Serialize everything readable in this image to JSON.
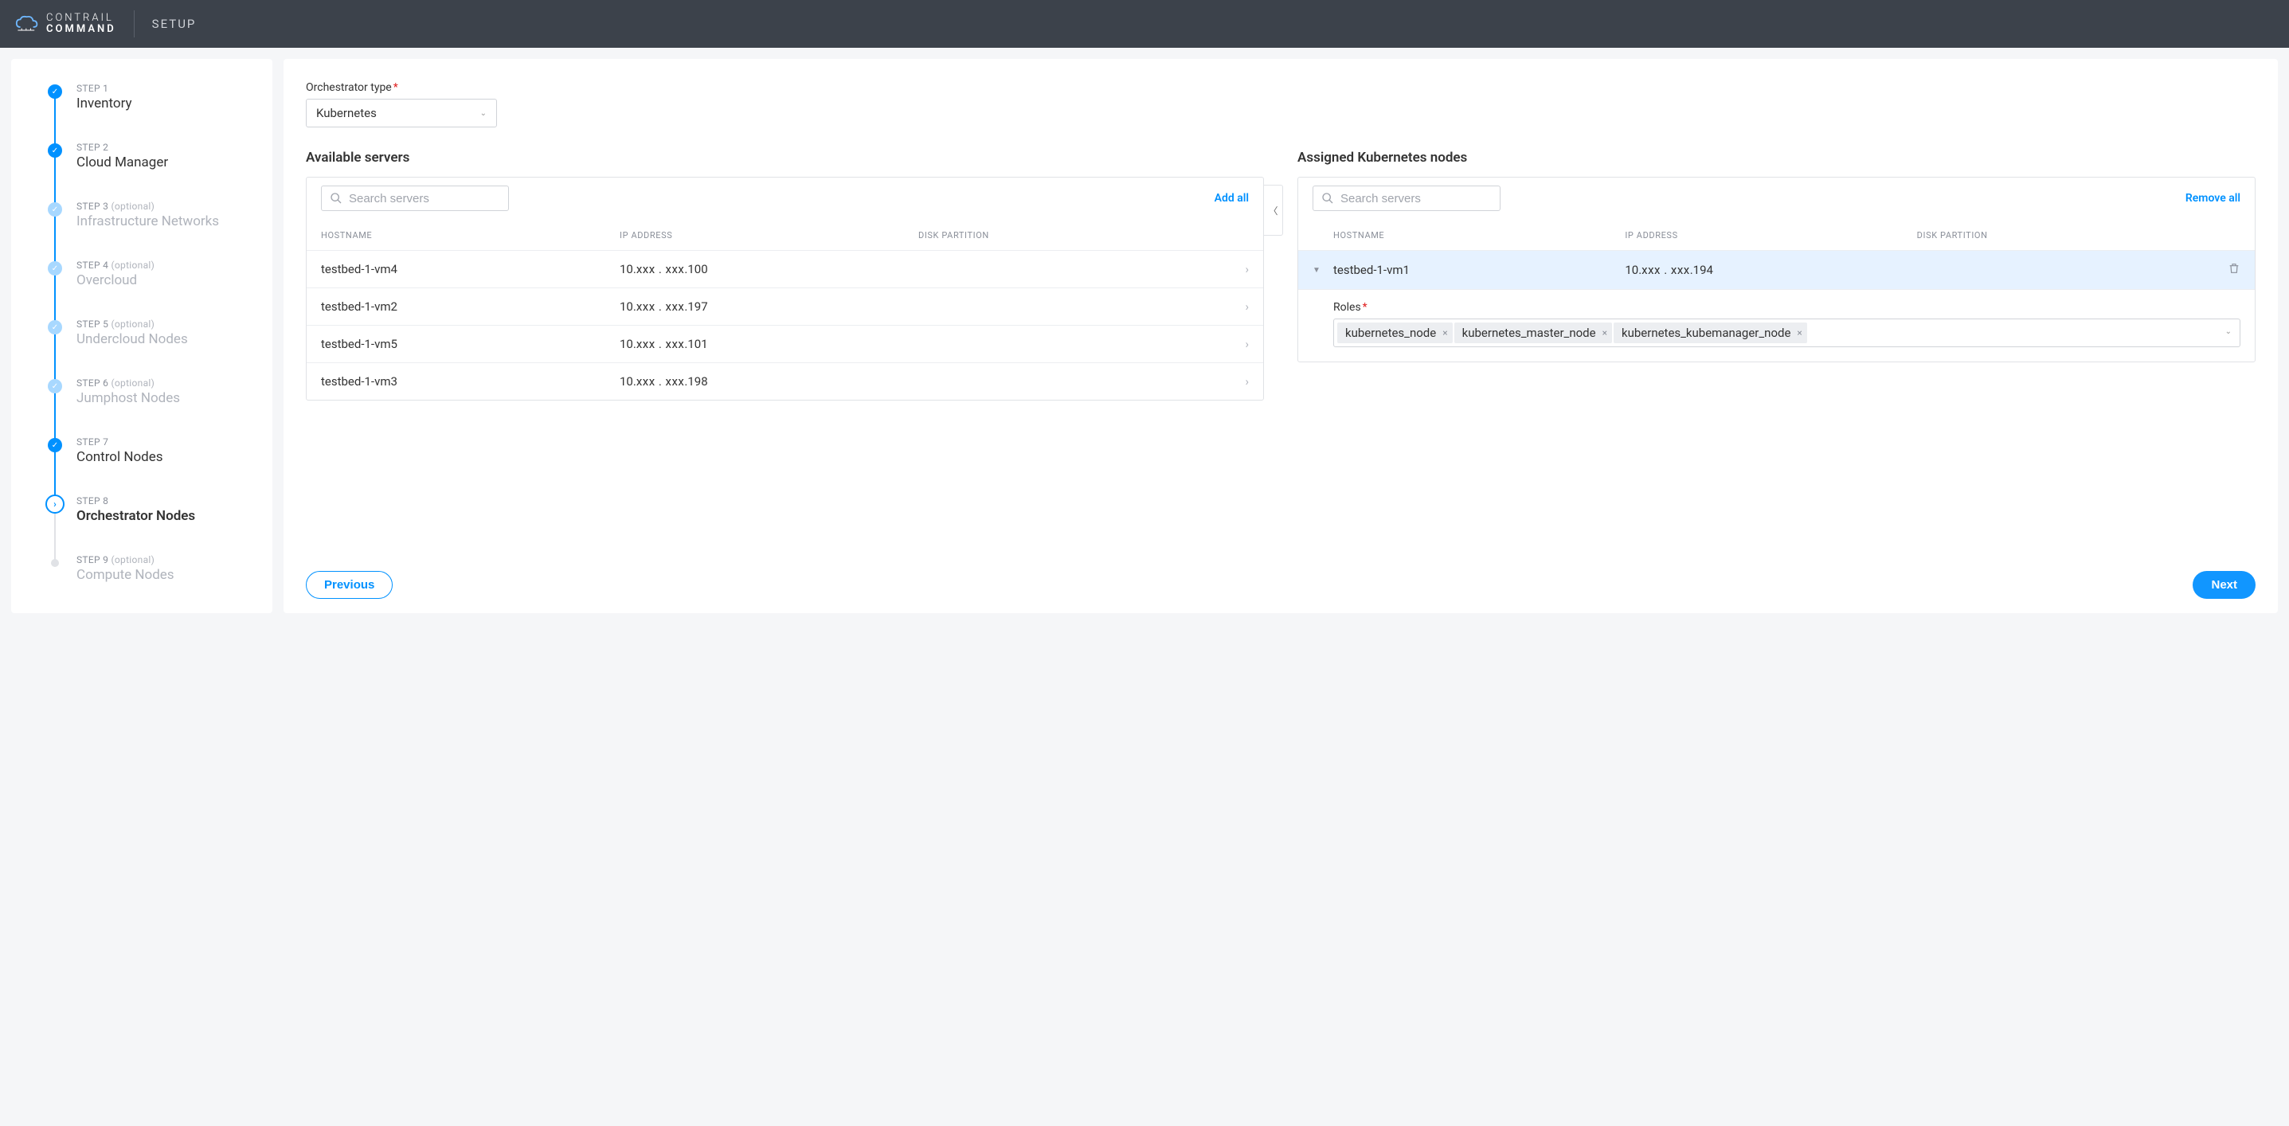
{
  "colors": {
    "header_bg": "#3c424b",
    "accent": "#0091ff",
    "accent_light": "#a8d8ff",
    "row_highlight": "#e6f2ff",
    "muted": "#8a8f99",
    "border": "#e0e2e6",
    "required": "#e02020"
  },
  "header": {
    "brand_line1": "CONTRAIL",
    "brand_line2": "COMMAND",
    "section": "SETUP"
  },
  "steps": [
    {
      "num": "STEP 1",
      "title": "Inventory",
      "optional": false,
      "state": "done"
    },
    {
      "num": "STEP 2",
      "title": "Cloud Manager",
      "optional": false,
      "state": "done"
    },
    {
      "num": "STEP 3",
      "title": "Infrastructure Networks",
      "optional": true,
      "state": "done"
    },
    {
      "num": "STEP 4",
      "title": "Overcloud",
      "optional": true,
      "state": "done"
    },
    {
      "num": "STEP 5",
      "title": "Undercloud Nodes",
      "optional": true,
      "state": "done"
    },
    {
      "num": "STEP 6",
      "title": "Jumphost Nodes",
      "optional": true,
      "state": "done"
    },
    {
      "num": "STEP 7",
      "title": "Control Nodes",
      "optional": false,
      "state": "done"
    },
    {
      "num": "STEP 8",
      "title": "Orchestrator Nodes",
      "optional": false,
      "state": "current"
    },
    {
      "num": "STEP 9",
      "title": "Compute Nodes",
      "optional": true,
      "state": "pending"
    }
  ],
  "opt_label": "(optional)",
  "orchestrator": {
    "label": "Orchestrator type",
    "value": "Kubernetes"
  },
  "available": {
    "title": "Available servers",
    "search_placeholder": "Search servers",
    "add_all": "Add all",
    "columns": {
      "hostname": "HOSTNAME",
      "ip": "IP ADDRESS",
      "disk": "DISK PARTITION"
    },
    "rows": [
      {
        "hostname": "testbed-1-vm4",
        "ip_prefix": "10.",
        "ip_mask": "xxx . xxx",
        "ip_suffix": ".100"
      },
      {
        "hostname": "testbed-1-vm2",
        "ip_prefix": "10.",
        "ip_mask": "xxx . xxx",
        "ip_suffix": ".197"
      },
      {
        "hostname": "testbed-1-vm5",
        "ip_prefix": "10.",
        "ip_mask": "xxx . xxx",
        "ip_suffix": ".101"
      },
      {
        "hostname": "testbed-1-vm3",
        "ip_prefix": "10.",
        "ip_mask": "xxx . xxx",
        "ip_suffix": ".198"
      }
    ]
  },
  "assigned": {
    "title": "Assigned Kubernetes nodes",
    "search_placeholder": "Search servers",
    "remove_all": "Remove all",
    "columns": {
      "hostname": "HOSTNAME",
      "ip": "IP ADDRESS",
      "disk": "DISK PARTITION"
    },
    "node": {
      "hostname": "testbed-1-vm1",
      "ip_prefix": "10.",
      "ip_mask": "xxx . xxx",
      "ip_suffix": ".194",
      "roles_label": "Roles",
      "roles": [
        "kubernetes_node",
        "kubernetes_master_node",
        "kubernetes_kubemanager_node"
      ]
    }
  },
  "footer": {
    "previous": "Previous",
    "next": "Next"
  }
}
